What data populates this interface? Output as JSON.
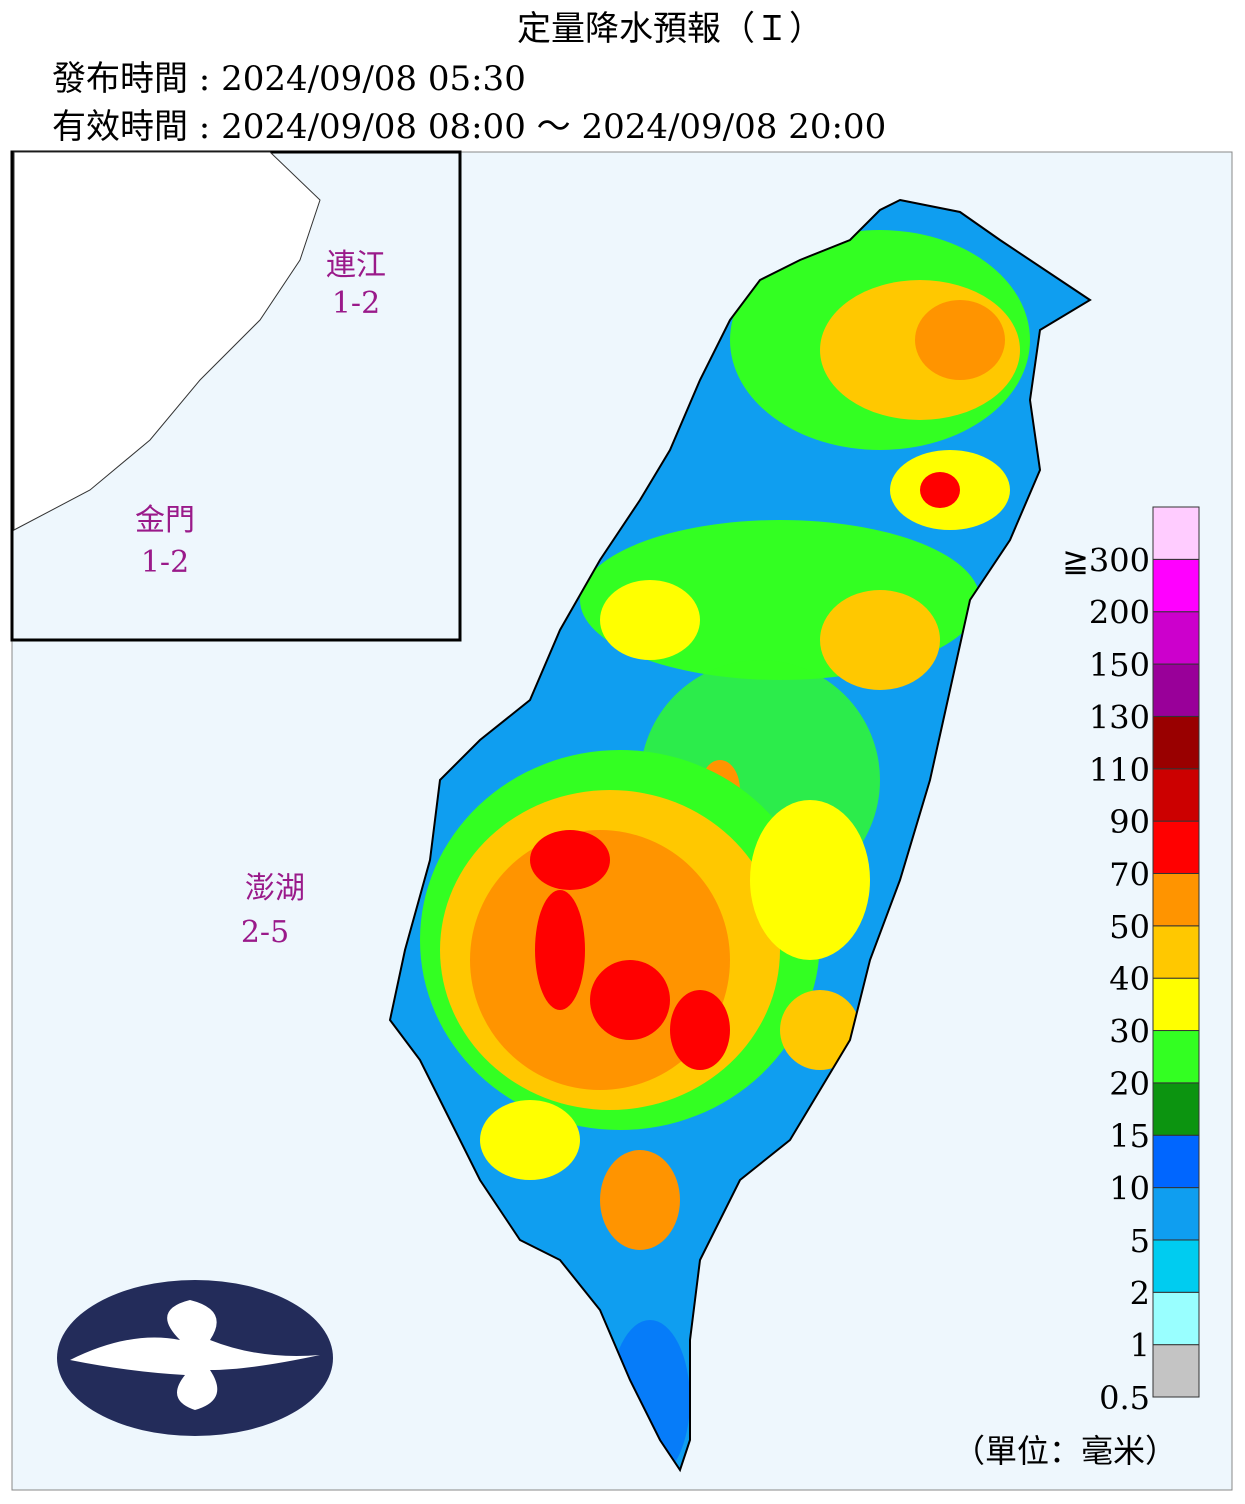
{
  "header": {
    "title": "定量降水預報（Ｉ）",
    "issued": "發布時間 : 2024/09/08 05:30",
    "valid": "有效時間 : 2024/09/08 08:00 ～ 2024/09/08 20:00"
  },
  "islands": [
    {
      "name": "連江",
      "range": "1-2"
    },
    {
      "name": "金門",
      "range": "1-2"
    },
    {
      "name": "澎湖",
      "range": "2-5"
    }
  ],
  "legend": {
    "labels": [
      "0.5",
      "1",
      "2",
      "5",
      "10",
      "15",
      "20",
      "30",
      "40",
      "50",
      "70",
      "90",
      "110",
      "130",
      "150",
      "200",
      "≧300"
    ],
    "colors": [
      "#c4c4c4",
      "#99ffff",
      "#00ccf0",
      "#0f9ef0",
      "#0066ff",
      "#0c9410",
      "#33ff22",
      "#ffff00",
      "#ffc800",
      "#ff9400",
      "#ff0000",
      "#cc0000",
      "#990000",
      "#990099",
      "#cc00cc",
      "#ff00ff",
      "#ffccff"
    ],
    "unit": "（單位：毫米）"
  }
}
